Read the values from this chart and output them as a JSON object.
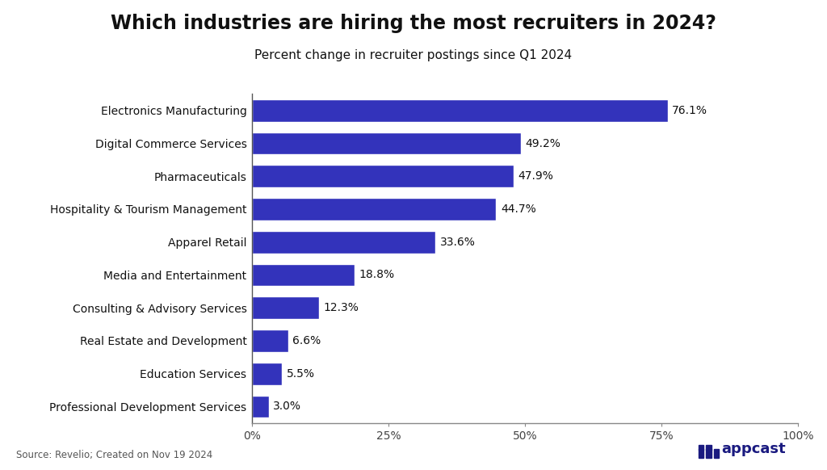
{
  "title": "Which industries are hiring the most recruiters in 2024?",
  "subtitle": "Percent change in recruiter postings since Q1 2024",
  "categories": [
    "Professional Development Services",
    "Education Services",
    "Real Estate and Development",
    "Consulting & Advisory Services",
    "Media and Entertainment",
    "Apparel Retail",
    "Hospitality & Tourism Management",
    "Pharmaceuticals",
    "Digital Commerce Services",
    "Electronics Manufacturing"
  ],
  "values": [
    3.0,
    5.5,
    6.6,
    12.3,
    18.8,
    33.6,
    44.7,
    47.9,
    49.2,
    76.1
  ],
  "bar_color": "#3333BB",
  "label_color": "#111111",
  "background_color": "#FFFFFF",
  "xlim": [
    0,
    100
  ],
  "xticks": [
    0,
    25,
    50,
    75,
    100
  ],
  "xtick_labels": [
    "0%",
    "25%",
    "50%",
    "75%",
    "100%"
  ],
  "source_text": "Source: Revelio; Created on Nov 19 2024",
  "title_fontsize": 17,
  "subtitle_fontsize": 11,
  "label_fontsize": 10,
  "tick_fontsize": 10,
  "bar_label_fontsize": 10
}
